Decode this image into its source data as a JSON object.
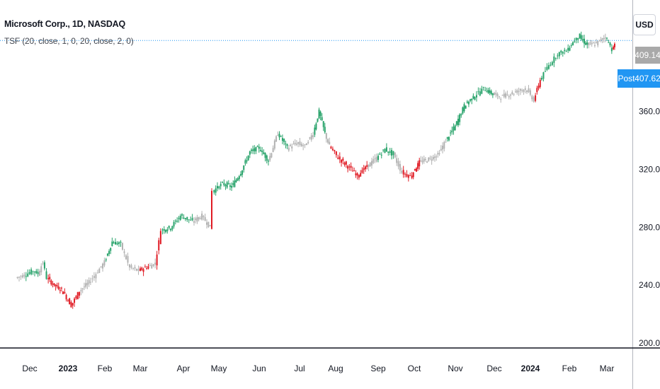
{
  "legend": {
    "symbol": "Microsoft Corp., 1D, NASDAQ",
    "indicator": "TSF (20, close, 1, 0, 20, close, 2, 0)"
  },
  "currency_label": "USD",
  "price_tags": {
    "last_price": "409.14",
    "post_label": "Post",
    "post_price": "407.62"
  },
  "colors": {
    "up": "#26a269",
    "down": "#e01b24",
    "neutral": "#b2b2b2",
    "dotted_line": "#2196f3",
    "post_badge": "#2196f3"
  },
  "chart_data": {
    "type": "candlestick",
    "title": "Microsoft Corp., 1D, NASDAQ",
    "ylim": [
      200,
      420
    ],
    "y_ticks": [
      "200.00",
      "240.00",
      "280.00",
      "320.00",
      "360.00"
    ],
    "x_ticks": [
      "Dec",
      "2023",
      "Feb",
      "Mar",
      "Apr",
      "May",
      "Jun",
      "Jul",
      "Aug",
      "Sep",
      "Oct",
      "Nov",
      "Dec",
      "2024",
      "Feb",
      "Mar"
    ],
    "x_tick_bold": [
      false,
      true,
      false,
      false,
      false,
      false,
      false,
      false,
      false,
      false,
      false,
      false,
      false,
      true,
      false,
      false
    ],
    "grid": false,
    "anchors": [
      [
        "2022-11-21",
        245,
        "neutral"
      ],
      [
        "2022-11-28",
        247,
        "up"
      ],
      [
        "2022-12-05",
        250,
        "up"
      ],
      [
        "2022-12-09",
        248,
        "neutral"
      ],
      [
        "2022-12-13",
        256,
        "up"
      ],
      [
        "2022-12-16",
        245,
        "down"
      ],
      [
        "2022-12-22",
        240,
        "down"
      ],
      [
        "2022-12-28",
        237,
        "red"
      ],
      [
        "2023-01-05",
        226,
        "down"
      ],
      [
        "2023-01-12",
        236,
        "neutral"
      ],
      [
        "2023-01-20",
        242,
        "neutral"
      ],
      [
        "2023-01-26",
        248,
        "neutral"
      ],
      [
        "2023-02-02",
        256,
        "up"
      ],
      [
        "2023-02-08",
        270,
        "up"
      ],
      [
        "2023-02-15",
        268,
        "neutral"
      ],
      [
        "2023-02-22",
        252,
        "neutral"
      ],
      [
        "2023-03-01",
        250,
        "down"
      ],
      [
        "2023-03-08",
        253,
        "neutral"
      ],
      [
        "2023-03-13",
        255,
        "down"
      ],
      [
        "2023-03-17",
        278,
        "up"
      ],
      [
        "2023-03-24",
        280,
        "up"
      ],
      [
        "2023-03-31",
        288,
        "up"
      ],
      [
        "2023-04-10",
        284,
        "neutral"
      ],
      [
        "2023-04-18",
        288,
        "neutral"
      ],
      [
        "2023-04-25",
        280,
        "down"
      ],
      [
        "2023-04-27",
        305,
        "up"
      ],
      [
        "2023-05-05",
        310,
        "up"
      ],
      [
        "2023-05-12",
        308,
        "up"
      ],
      [
        "2023-05-19",
        318,
        "up"
      ],
      [
        "2023-05-26",
        332,
        "up"
      ],
      [
        "2023-06-02",
        335,
        "up"
      ],
      [
        "2023-06-09",
        326,
        "neutral"
      ],
      [
        "2023-06-16",
        345,
        "up"
      ],
      [
        "2023-06-23",
        335,
        "neutral"
      ],
      [
        "2023-06-30",
        338,
        "neutral"
      ],
      [
        "2023-07-07",
        336,
        "neutral"
      ],
      [
        "2023-07-14",
        345,
        "up"
      ],
      [
        "2023-07-19",
        360,
        "up"
      ],
      [
        "2023-07-24",
        345,
        "neutral"
      ],
      [
        "2023-07-28",
        336,
        "down"
      ],
      [
        "2023-08-04",
        328,
        "down"
      ],
      [
        "2023-08-11",
        322,
        "down"
      ],
      [
        "2023-08-18",
        316,
        "down"
      ],
      [
        "2023-08-25",
        322,
        "neutral"
      ],
      [
        "2023-09-01",
        328,
        "up"
      ],
      [
        "2023-09-08",
        334,
        "up"
      ],
      [
        "2023-09-15",
        330,
        "neutral"
      ],
      [
        "2023-09-22",
        318,
        "down"
      ],
      [
        "2023-09-29",
        315,
        "down"
      ],
      [
        "2023-10-06",
        325,
        "neutral"
      ],
      [
        "2023-10-13",
        327,
        "neutral"
      ],
      [
        "2023-10-20",
        330,
        "neutral"
      ],
      [
        "2023-10-26",
        340,
        "up"
      ],
      [
        "2023-11-02",
        350,
        "up"
      ],
      [
        "2023-11-09",
        364,
        "up"
      ],
      [
        "2023-11-16",
        370,
        "up"
      ],
      [
        "2023-11-24",
        376,
        "up"
      ],
      [
        "2023-12-01",
        372,
        "neutral"
      ],
      [
        "2023-12-08",
        370,
        "neutral"
      ],
      [
        "2023-12-15",
        372,
        "neutral"
      ],
      [
        "2023-12-22",
        374,
        "neutral"
      ],
      [
        "2023-12-29",
        376,
        "neutral"
      ],
      [
        "2024-01-05",
        368,
        "down"
      ],
      [
        "2024-01-10",
        382,
        "up"
      ],
      [
        "2024-01-17",
        392,
        "up"
      ],
      [
        "2024-01-24",
        400,
        "up"
      ],
      [
        "2024-01-31",
        402,
        "up"
      ],
      [
        "2024-02-05",
        408,
        "up"
      ],
      [
        "2024-02-09",
        412,
        "up"
      ],
      [
        "2024-02-16",
        406,
        "neutral"
      ],
      [
        "2024-02-23",
        407,
        "neutral"
      ],
      [
        "2024-03-01",
        412,
        "up"
      ],
      [
        "2024-03-06",
        403,
        "down"
      ],
      [
        "2024-03-08",
        406,
        "neutral"
      ]
    ]
  }
}
